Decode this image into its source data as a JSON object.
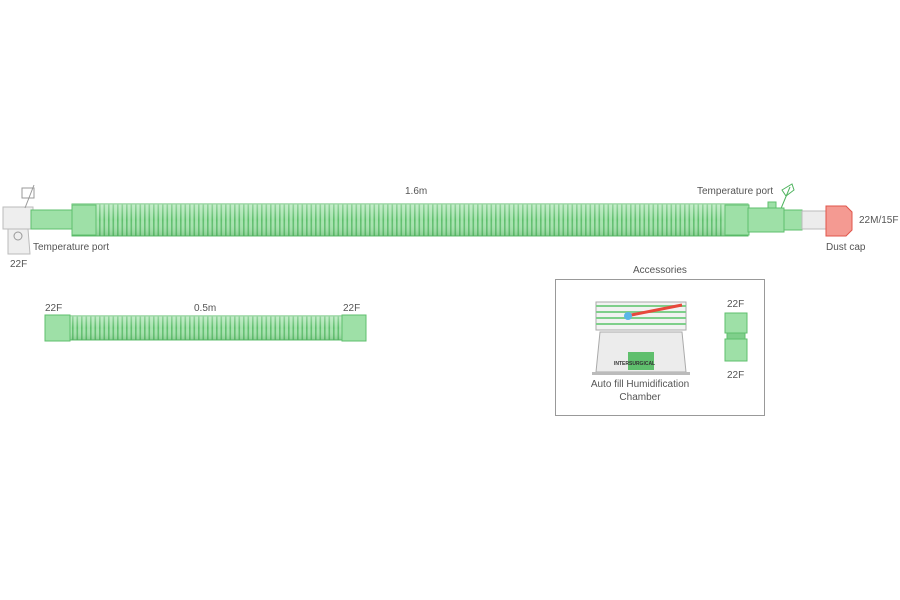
{
  "main_circuit": {
    "length_label": "1.6m",
    "left_port_label": "Temperature port",
    "left_end_label": "22F",
    "right_port_label": "Temperature port",
    "right_end_label": "22M/15F",
    "dust_cap_label": "Dust cap"
  },
  "extension_tube": {
    "left_label": "22F",
    "length_label": "0.5m",
    "right_label": "22F"
  },
  "accessories": {
    "title": "Accessories",
    "chamber_label_line1": "Auto fill Humidification",
    "chamber_label_line2": "Chamber",
    "chamber_brand": "INTERSURGICAL",
    "connector_top_label": "22F",
    "connector_bottom_label": "22F"
  },
  "colors": {
    "tube": "#8fd99a",
    "tube_dark": "#4fb45f",
    "cap": "#f27a72",
    "grey": "#e4e4e4"
  }
}
